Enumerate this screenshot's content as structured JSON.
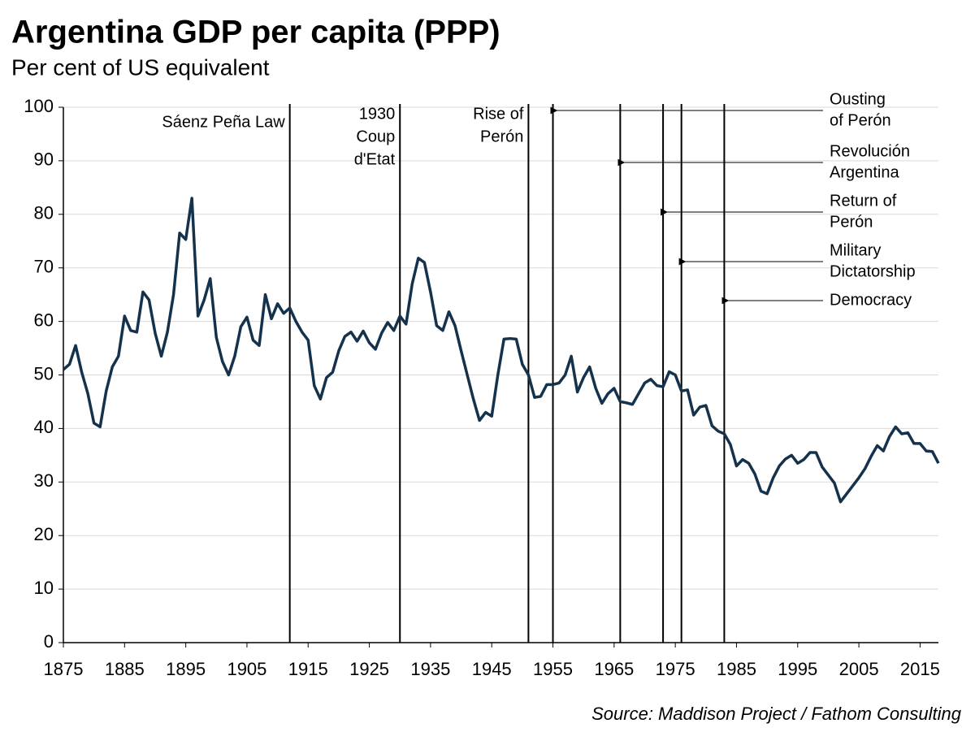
{
  "chart_data": {
    "type": "line",
    "title": "Argentina GDP per capita (PPP)",
    "subtitle": "Per cent of US equivalent",
    "source": "Source: Maddison Project / Fathom Consulting",
    "x": [
      1875,
      1876,
      1877,
      1878,
      1879,
      1880,
      1881,
      1882,
      1883,
      1884,
      1885,
      1886,
      1887,
      1888,
      1889,
      1890,
      1891,
      1892,
      1893,
      1894,
      1895,
      1896,
      1897,
      1898,
      1899,
      1900,
      1901,
      1902,
      1903,
      1904,
      1905,
      1906,
      1907,
      1908,
      1909,
      1910,
      1911,
      1912,
      1913,
      1914,
      1915,
      1916,
      1917,
      1918,
      1919,
      1920,
      1921,
      1922,
      1923,
      1924,
      1925,
      1926,
      1927,
      1928,
      1929,
      1930,
      1931,
      1932,
      1933,
      1934,
      1935,
      1936,
      1937,
      1938,
      1939,
      1940,
      1941,
      1942,
      1943,
      1944,
      1945,
      1946,
      1947,
      1948,
      1949,
      1950,
      1951,
      1952,
      1953,
      1954,
      1955,
      1956,
      1957,
      1958,
      1959,
      1960,
      1961,
      1962,
      1963,
      1964,
      1965,
      1966,
      1967,
      1968,
      1969,
      1970,
      1971,
      1972,
      1973,
      1974,
      1975,
      1976,
      1977,
      1978,
      1979,
      1980,
      1981,
      1982,
      1983,
      1984,
      1985,
      1986,
      1987,
      1988,
      1989,
      1990,
      1991,
      1992,
      1993,
      1994,
      1995,
      1996,
      1997,
      1998,
      1999,
      2000,
      2001,
      2002,
      2003,
      2004,
      2005,
      2006,
      2007,
      2008,
      2009,
      2010,
      2011,
      2012,
      2013,
      2014,
      2015,
      2016,
      2017,
      2018
    ],
    "series": [
      {
        "name": "Argentina",
        "color": "#15324d",
        "values": [
          51,
          52,
          55.5,
          50.5,
          46.5,
          41,
          40.3,
          47,
          51.5,
          53.5,
          61,
          58.3,
          58,
          65.5,
          64,
          57.8,
          53.5,
          58,
          65,
          76.5,
          75.3,
          83,
          61,
          64,
          68,
          57,
          52.5,
          50,
          53.5,
          59,
          60.8,
          56.5,
          55.5,
          65,
          60.5,
          63.3,
          61.5,
          62.5,
          60,
          58,
          56.5,
          48,
          45.5,
          49.5,
          50.5,
          54.5,
          57.2,
          58,
          56.3,
          58.2,
          56,
          54.8,
          57.8,
          59.8,
          58.3,
          61,
          59.5,
          67,
          71.8,
          71,
          65.5,
          59.2,
          58.3,
          61.8,
          59.2,
          54.5,
          50,
          45.5,
          41.5,
          43,
          42.3,
          50,
          56.7,
          56.8,
          56.7,
          52,
          50,
          45.8,
          46,
          48.2,
          48.2,
          48.5,
          50,
          53.5,
          46.8,
          49.5,
          51.5,
          47.5,
          44.7,
          46.5,
          47.5,
          45,
          44.8,
          44.5,
          46.5,
          48.5,
          49.2,
          48,
          47.8,
          50.6,
          50,
          47,
          47.2,
          42.5,
          44,
          44.3,
          40.5,
          39.5,
          39,
          37,
          33,
          34.2,
          33.5,
          31.5,
          28.3,
          27.8,
          30.8,
          33,
          34.3,
          35,
          33.5,
          34.2,
          35.5,
          35.5,
          32.8,
          31.3,
          29.8,
          26.3,
          27.8,
          29.3,
          30.8,
          32.5,
          34.8,
          36.8,
          35.8,
          38.5,
          40.3,
          39,
          39.2,
          37.2,
          37.2,
          35.8,
          35.7,
          33.5
        ]
      }
    ],
    "xlim": [
      1875,
      2018
    ],
    "xticks": [
      1875,
      1885,
      1895,
      1905,
      1915,
      1925,
      1935,
      1945,
      1955,
      1965,
      1975,
      1985,
      1995,
      2005,
      2015
    ],
    "ylim": [
      0,
      100
    ],
    "yticks": [
      0,
      10,
      20,
      30,
      40,
      50,
      60,
      70,
      80,
      90,
      100
    ],
    "grid": true,
    "events": [
      {
        "year": 1912,
        "label": [
          "Sáenz Peña Law"
        ],
        "side": "left"
      },
      {
        "year": 1930,
        "label": [
          "1930",
          "Coup",
          "d'Etat"
        ],
        "side": "left"
      },
      {
        "year": 1951,
        "label": [
          "Rise of",
          "Perón"
        ],
        "side": "left"
      },
      {
        "year": 1955,
        "label": [
          "Ousting",
          "of Perón"
        ],
        "side": "right"
      },
      {
        "year": 1966,
        "label": [
          "Revolución",
          "Argentina"
        ],
        "side": "right"
      },
      {
        "year": 1973,
        "label": [
          "Return of",
          "Perón"
        ],
        "side": "right"
      },
      {
        "year": 1976,
        "label": [
          "Military",
          "Dictatorship"
        ],
        "side": "right"
      },
      {
        "year": 1983,
        "label": [
          "Democracy"
        ],
        "side": "right"
      }
    ]
  }
}
